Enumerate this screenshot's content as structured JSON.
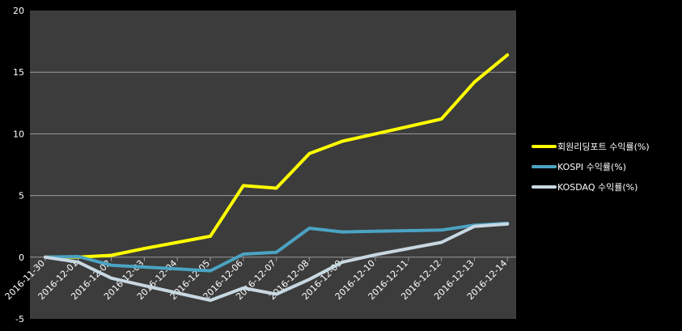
{
  "chart_data": {
    "type": "line",
    "categories": [
      "2016-11-30",
      "2016-12-01",
      "2016-12-02",
      "2016-12-03",
      "2016-12-04",
      "2016-12-05",
      "2016-12-06",
      "2016-12-07",
      "2016-12-08",
      "2016-12-09",
      "2016-12-10",
      "2016-12-11",
      "2016-12-12",
      "2016-12-13",
      "2016-12-14"
    ],
    "ylim": [
      -5,
      20
    ],
    "yticks": [
      -5,
      0,
      5,
      10,
      15,
      20
    ],
    "grid": true,
    "legend_position": "right",
    "series": [
      {
        "name": "회원리딩포트 수익률(%)",
        "color": "#ffff00",
        "values": [
          0,
          0,
          0.15,
          0.7,
          1.2,
          1.7,
          5.8,
          5.6,
          8.4,
          9.4,
          10.0,
          10.6,
          11.2,
          14.2,
          16.4
        ]
      },
      {
        "name": "KOSPI 수익률(%)",
        "color": "#4ba3c3",
        "values": [
          0,
          0.05,
          -0.65,
          -0.8,
          -0.95,
          -1.1,
          0.25,
          0.4,
          2.35,
          2.05,
          2.1,
          2.15,
          2.2,
          2.6,
          2.75
        ]
      },
      {
        "name": "KOSDAQ 수익률(%)",
        "color": "#c8d8e2",
        "values": [
          0,
          -0.4,
          -1.7,
          -2.3,
          -2.9,
          -3.5,
          -2.5,
          -3.0,
          -1.8,
          -0.4,
          0.2,
          0.7,
          1.2,
          2.5,
          2.7
        ]
      }
    ]
  }
}
